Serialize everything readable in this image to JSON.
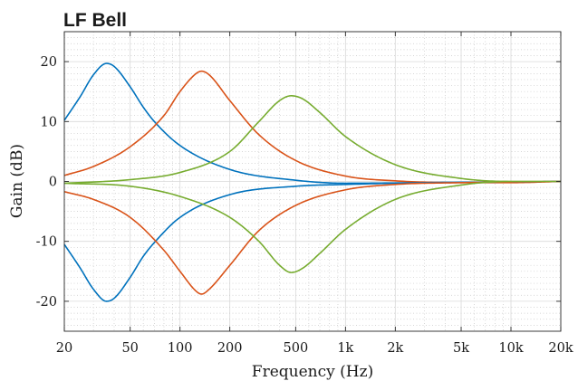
{
  "chart_data": {
    "type": "line",
    "title": "LF Bell",
    "xlabel": "Frequency (Hz)",
    "ylabel": "Gain (dB)",
    "x_scale": "log",
    "xlim": [
      20,
      20000
    ],
    "ylim": [
      -25,
      25
    ],
    "x_ticks": [
      20,
      50,
      100,
      200,
      500,
      1000,
      2000,
      5000,
      10000,
      20000
    ],
    "x_tick_labels": [
      "20",
      "50",
      "100",
      "200",
      "500",
      "1k",
      "2k",
      "5k",
      "10k",
      "20k"
    ],
    "y_ticks": [
      20,
      10,
      0,
      -10,
      -20
    ],
    "y_tick_labels": [
      "20",
      "10",
      "0",
      "-10",
      "-20"
    ],
    "grid": true,
    "legend": "none",
    "colors": [
      "#0072BD",
      "#D95319",
      "#77AC30"
    ],
    "series": [
      {
        "color": "#0072BD",
        "points": [
          [
            20,
            10.2
          ],
          [
            25,
            14.2
          ],
          [
            30,
            17.8
          ],
          [
            36,
            19.7
          ],
          [
            40,
            19.2
          ],
          [
            50,
            15.8
          ],
          [
            60,
            12.4
          ],
          [
            70,
            10.0
          ],
          [
            100,
            6.0
          ],
          [
            200,
            2.0
          ],
          [
            500,
            0.2
          ],
          [
            1000,
            -0.3
          ],
          [
            3000,
            -0.2
          ],
          [
            10000,
            -0.1
          ],
          [
            20000,
            0
          ]
        ]
      },
      {
        "color": "#D95319",
        "points": [
          [
            20,
            1.0
          ],
          [
            30,
            2.5
          ],
          [
            50,
            5.8
          ],
          [
            80,
            11.0
          ],
          [
            100,
            15.0
          ],
          [
            125,
            18.0
          ],
          [
            135,
            18.4
          ],
          [
            150,
            17.8
          ],
          [
            200,
            13.5
          ],
          [
            300,
            7.8
          ],
          [
            500,
            3.5
          ],
          [
            1000,
            0.9
          ],
          [
            2000,
            0.1
          ],
          [
            5000,
            -0.2
          ],
          [
            10000,
            -0.2
          ],
          [
            20000,
            0
          ]
        ]
      },
      {
        "color": "#77AC30",
        "points": [
          [
            20,
            -0.3
          ],
          [
            50,
            0.3
          ],
          [
            100,
            1.5
          ],
          [
            200,
            5.0
          ],
          [
            300,
            10.0
          ],
          [
            400,
            13.5
          ],
          [
            470,
            14.3
          ],
          [
            550,
            13.8
          ],
          [
            700,
            11.5
          ],
          [
            1000,
            7.5
          ],
          [
            2000,
            2.8
          ],
          [
            5000,
            0.5
          ],
          [
            10000,
            0
          ],
          [
            20000,
            0
          ]
        ]
      },
      {
        "color": "#0072BD",
        "points": [
          [
            20,
            -10.5
          ],
          [
            25,
            -14.5
          ],
          [
            30,
            -18.0
          ],
          [
            36,
            -20.0
          ],
          [
            40,
            -19.5
          ],
          [
            50,
            -16.0
          ],
          [
            60,
            -12.5
          ],
          [
            70,
            -10.2
          ],
          [
            100,
            -6.0
          ],
          [
            200,
            -2.2
          ],
          [
            500,
            -0.8
          ],
          [
            1000,
            -0.5
          ],
          [
            3000,
            -0.2
          ],
          [
            10000,
            -0.1
          ],
          [
            20000,
            0
          ]
        ]
      },
      {
        "color": "#D95319",
        "points": [
          [
            20,
            -1.7
          ],
          [
            30,
            -3.0
          ],
          [
            50,
            -6.0
          ],
          [
            80,
            -11.5
          ],
          [
            100,
            -15.0
          ],
          [
            125,
            -18.3
          ],
          [
            135,
            -18.8
          ],
          [
            150,
            -18.0
          ],
          [
            200,
            -14.0
          ],
          [
            300,
            -8.2
          ],
          [
            500,
            -4.0
          ],
          [
            1000,
            -1.4
          ],
          [
            2000,
            -0.5
          ],
          [
            5000,
            -0.2
          ],
          [
            10000,
            -0.1
          ],
          [
            20000,
            0
          ]
        ]
      },
      {
        "color": "#77AC30",
        "points": [
          [
            20,
            -0.3
          ],
          [
            50,
            -0.8
          ],
          [
            100,
            -2.5
          ],
          [
            200,
            -6.0
          ],
          [
            300,
            -10.0
          ],
          [
            400,
            -14.0
          ],
          [
            470,
            -15.2
          ],
          [
            550,
            -14.5
          ],
          [
            700,
            -12.0
          ],
          [
            1000,
            -8.0
          ],
          [
            2000,
            -3.0
          ],
          [
            5000,
            -0.6
          ],
          [
            10000,
            0
          ],
          [
            20000,
            0
          ]
        ]
      }
    ]
  }
}
